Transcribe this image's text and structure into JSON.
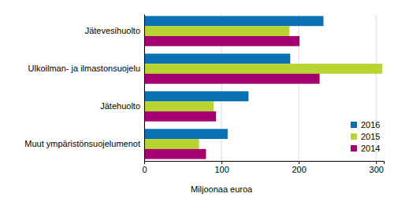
{
  "chart_data": {
    "type": "bar",
    "orientation": "horizontal",
    "categories": [
      "Jätevesihuolto",
      "Ulkoilman- ja ilmastonsuojelu",
      "Jätehuolto",
      "Muut ympäristönsuojelumenot"
    ],
    "series": [
      {
        "name": "2016",
        "color": "#0a72b4",
        "values": [
          232,
          189,
          135,
          108
        ]
      },
      {
        "name": "2015",
        "color": "#b8d432",
        "values": [
          188,
          308,
          90,
          71
        ]
      },
      {
        "name": "2014",
        "color": "#a4006f",
        "values": [
          201,
          227,
          93,
          80
        ]
      }
    ],
    "x_label": "Miljoonaa euroa",
    "xlim": [
      0,
      310
    ],
    "xticks": [
      0,
      100,
      200,
      300
    ],
    "grid": true,
    "legend": "lower right"
  }
}
